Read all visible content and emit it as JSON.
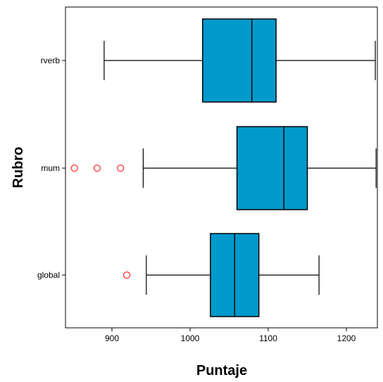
{
  "chart_data": {
    "type": "boxplot",
    "orientation": "horizontal",
    "xlabel": "Puntaje",
    "ylabel": "Rubro",
    "xlim": [
      835,
      1240
    ],
    "x_ticks": [
      900,
      1000,
      1100,
      1200
    ],
    "grid": false,
    "categories": [
      "rverb",
      "mum",
      "global"
    ],
    "boxes": [
      {
        "name": "rverb",
        "whisker_low": 890,
        "q1": 1016,
        "median": 1079,
        "q3": 1110,
        "whisker_high": 1237,
        "outliers": []
      },
      {
        "name": "mum",
        "whisker_low": 940,
        "q1": 1060,
        "median": 1120,
        "q3": 1150,
        "whisker_high": 1238,
        "outliers": [
          852,
          881,
          911
        ]
      },
      {
        "name": "global",
        "whisker_low": 944,
        "q1": 1026,
        "median": 1057,
        "q3": 1088,
        "whisker_high": 1165,
        "outliers": [
          919
        ]
      }
    ],
    "colors": {
      "box_fill": "#0099cc",
      "outlier": "#ff3333",
      "line": "#000000"
    }
  }
}
